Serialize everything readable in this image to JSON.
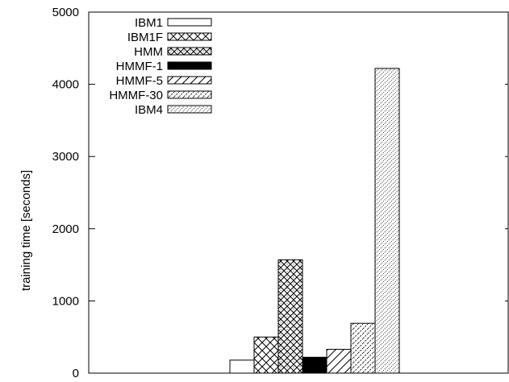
{
  "chart_data": {
    "type": "bar",
    "title": "",
    "xlabel": "",
    "ylabel": "training time [seconds]",
    "ylim": [
      0,
      5000
    ],
    "yticks": [
      0,
      1000,
      2000,
      3000,
      4000,
      5000
    ],
    "grid": false,
    "legend_position": "top-left",
    "series": [
      {
        "name": "IBM1",
        "value": 180,
        "pattern": "solid-white"
      },
      {
        "name": "IBM1F",
        "value": 500,
        "pattern": "cross-hatch"
      },
      {
        "name": "HMM",
        "value": 1570,
        "pattern": "diamond-hatch"
      },
      {
        "name": "HMMF-1",
        "value": 220,
        "pattern": "solid-black"
      },
      {
        "name": "HMMF-5",
        "value": 330,
        "pattern": "diagonal-hatch"
      },
      {
        "name": "HMMF-30",
        "value": 690,
        "pattern": "dense-diagonal-hatch"
      },
      {
        "name": "IBM4",
        "value": 4220,
        "pattern": "dotted-diagonal-hatch"
      }
    ]
  }
}
